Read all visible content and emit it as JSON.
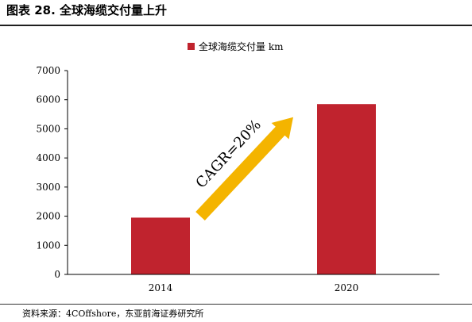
{
  "figure_title": "图表 28. 全球海缆交付量上升",
  "source_text": "资料来源：4COffshore，东亚前海证券研究所",
  "colors": {
    "bar": "#c0232e",
    "arrow": "#f4b400",
    "axis": "#000000"
  },
  "chart_data": {
    "type": "bar",
    "title": "",
    "xlabel": "",
    "ylabel": "",
    "categories": [
      "2014",
      "2020"
    ],
    "series": [
      {
        "name": "全球海缆交付量 km",
        "values": [
          1950,
          5850
        ]
      }
    ],
    "ylim": [
      0,
      7000
    ],
    "yticks": [
      0,
      1000,
      2000,
      3000,
      4000,
      5000,
      6000,
      7000
    ],
    "grid": false,
    "legend_position": "top",
    "annotation": "CAGR=20%"
  }
}
